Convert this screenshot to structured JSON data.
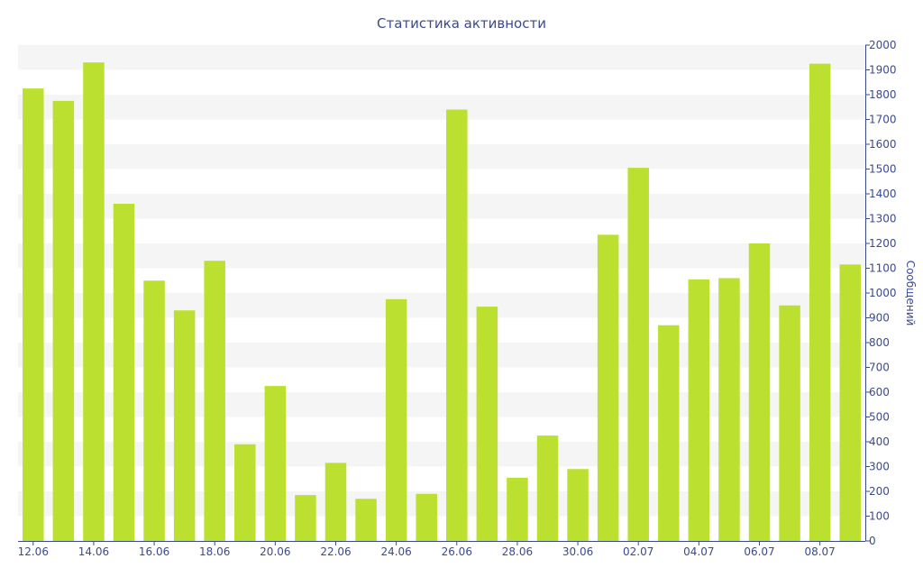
{
  "colors": {
    "bar": "#bbe02f",
    "axis": "#3b4a8c",
    "text": "#3b4a8c",
    "band": "#f5f5f5"
  },
  "chart_data": {
    "type": "bar",
    "title": "Статистика активности",
    "xlabel": "",
    "ylabel": "Сообщений",
    "y_axis_position": "right",
    "grid": "alternating horizontal bands",
    "ylim": [
      0,
      2000
    ],
    "yticks": [
      0,
      100,
      200,
      300,
      400,
      500,
      600,
      700,
      800,
      900,
      1000,
      1100,
      1200,
      1300,
      1400,
      1500,
      1600,
      1700,
      1800,
      1900,
      2000
    ],
    "xtick_labels": [
      "12.06",
      "14.06",
      "16.06",
      "18.06",
      "20.06",
      "22.06",
      "24.06",
      "26.06",
      "28.06",
      "30.06",
      "02.07",
      "04.07",
      "06.07",
      "08.07"
    ],
    "values": [
      1825,
      1775,
      1930,
      1360,
      1050,
      930,
      1130,
      390,
      625,
      185,
      315,
      170,
      975,
      190,
      1740,
      945,
      255,
      425,
      290,
      1235,
      1505,
      870,
      1055,
      1060,
      1200,
      950,
      1925,
      1115
    ]
  }
}
